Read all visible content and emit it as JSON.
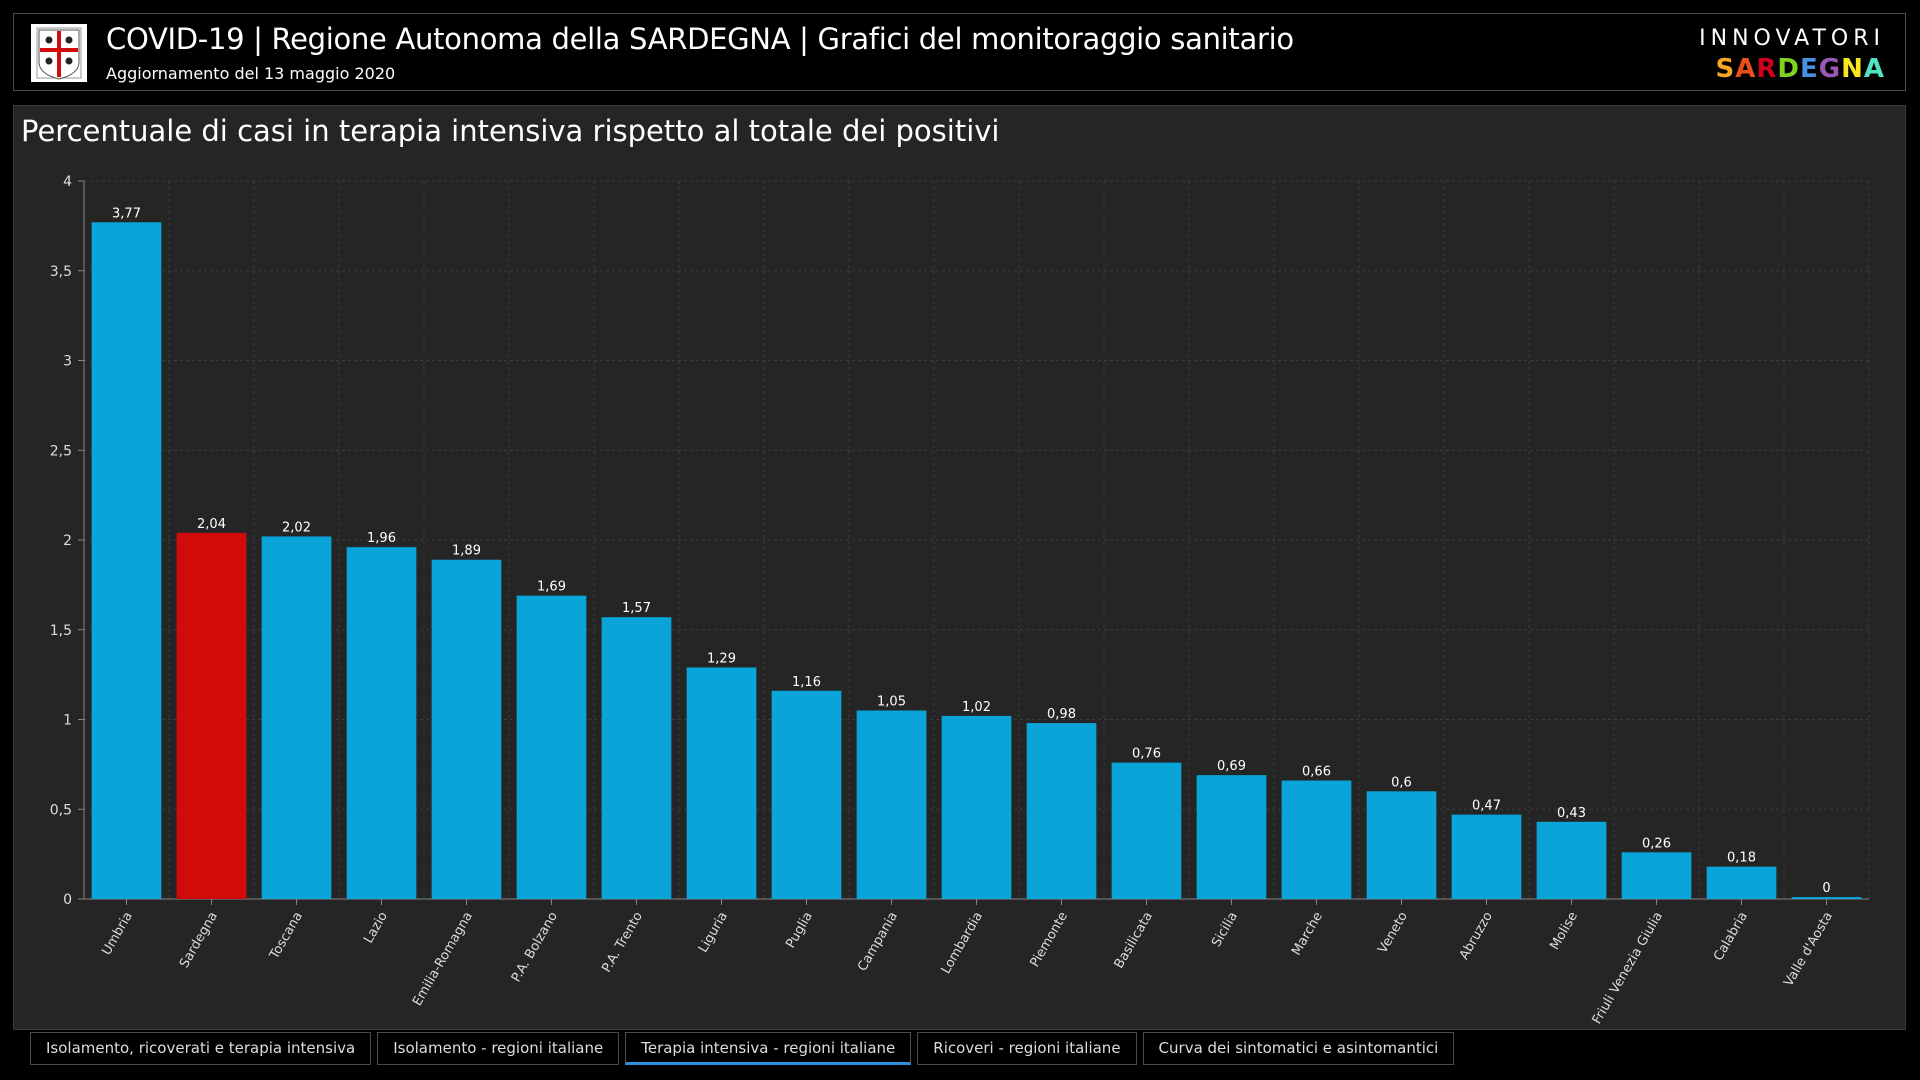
{
  "header": {
    "title": "COVID-19 | Regione Autonoma della SARDEGNA | Grafici del monitoraggio sanitario",
    "subtitle": "Aggiornamento del 13 maggio 2020",
    "brand_top": "INNOVATORI",
    "brand_bottom": "SARDEGNA",
    "brand_colors": [
      "#f5a623",
      "#e94e1b",
      "#d0021b",
      "#7ed321",
      "#4a90e2",
      "#9b59b6",
      "#f8e71c",
      "#50e3c2"
    ]
  },
  "tabs": [
    {
      "label": "Isolamento, ricoverati e terapia intensiva",
      "active": false
    },
    {
      "label": "Isolamento - regioni italiane",
      "active": false
    },
    {
      "label": "Terapia intensiva - regioni italiane",
      "active": true
    },
    {
      "label": "Ricoveri - regioni italiane",
      "active": false
    },
    {
      "label": "Curva dei sintomatici e asintomantici",
      "active": false
    }
  ],
  "colors": {
    "bar": "#0aa5d8",
    "bar_highlight": "#d10a0a",
    "background": "#252525",
    "grid": "#3c3c3c",
    "tab_active": "#2d8fe0"
  },
  "chart_data": {
    "type": "bar",
    "title": "Percentuale di casi in terapia intensiva rispetto al totale dei positivi",
    "categories": [
      "Umbria",
      "Sardegna",
      "Toscana",
      "Lazio",
      "Emilia-Romagna",
      "P.A. Bolzano",
      "P.A. Trento",
      "Liguria",
      "Puglia",
      "Campania",
      "Lombardia",
      "Piemonte",
      "Basilicata",
      "Sicilia",
      "Marche",
      "Veneto",
      "Abruzzo",
      "Molise",
      "Friuli Venezia Giulia",
      "Calabria",
      "Valle d'Aosta"
    ],
    "values": [
      3.77,
      2.04,
      2.02,
      1.96,
      1.89,
      1.69,
      1.57,
      1.29,
      1.16,
      1.05,
      1.02,
      0.98,
      0.76,
      0.69,
      0.66,
      0.6,
      0.47,
      0.43,
      0.26,
      0.18,
      0
    ],
    "value_labels": [
      "3,77",
      "2,04",
      "2,02",
      "1,96",
      "1,89",
      "1,69",
      "1,57",
      "1,29",
      "1,16",
      "1,05",
      "1,02",
      "0,98",
      "0,76",
      "0,69",
      "0,66",
      "0,6",
      "0,47",
      "0,43",
      "0,26",
      "0,18",
      "0"
    ],
    "highlight_category": "Sardegna",
    "yticks": [
      0,
      0.5,
      1,
      1.5,
      2,
      2.5,
      3,
      3.5,
      4
    ],
    "ytick_labels": [
      "0",
      "0,5",
      "1",
      "1,5",
      "2",
      "2,5",
      "3",
      "3,5",
      "4"
    ],
    "ylim": [
      0,
      4
    ],
    "xlabel": "",
    "ylabel": "",
    "grid": true,
    "legend": "none"
  }
}
